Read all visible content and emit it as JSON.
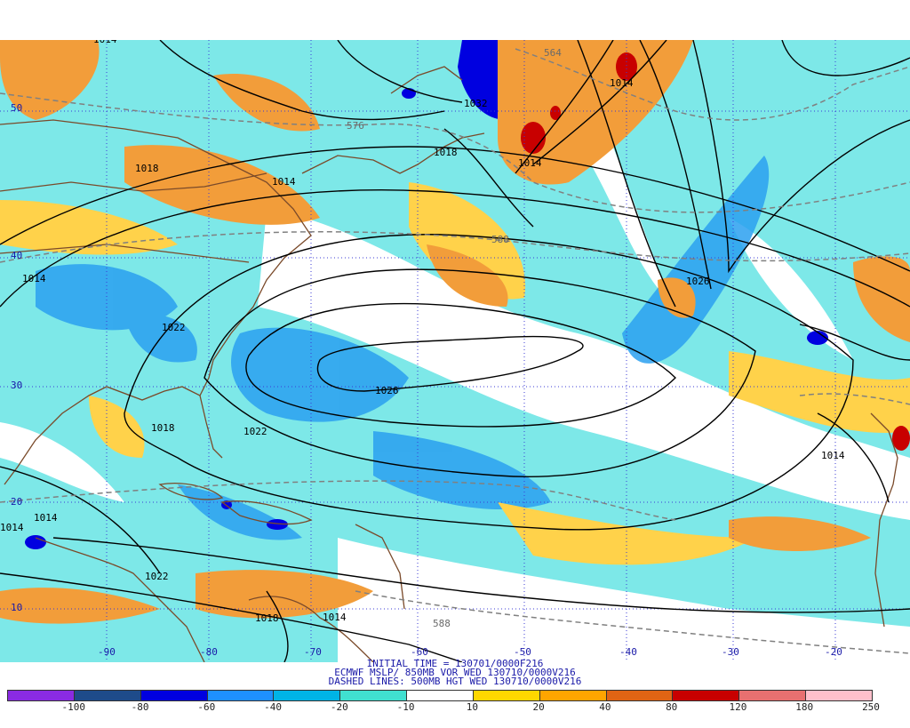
{
  "caption": {
    "line1": "INITIAL TIME = 130701/0000F216",
    "line2": "ECMWF MSLP/ 850MB VOR WED 130710/0000V216",
    "line3": "DASHED LINES: 500MB HGT WED 130710/0000V216"
  },
  "colorbar": {
    "colors": [
      "#8a2be2",
      "#1e4b8a",
      "#0000e0",
      "#1e90ff",
      "#00b4e6",
      "#40e0d0",
      "#ffffff",
      "#ffd700",
      "#ffa500",
      "#e06414",
      "#c80000",
      "#e87070",
      "#ffc0cb"
    ],
    "ticks": [
      "-100",
      "-80",
      "-60",
      "-40",
      "-20",
      "-10",
      "10",
      "20",
      "40",
      "80",
      "120",
      "180",
      "250"
    ]
  },
  "axes": {
    "lon_labels": [
      "-90",
      "-80",
      "-70",
      "-60",
      "-50",
      "-40",
      "-30",
      "-20"
    ],
    "lat_labels": [
      "50",
      "40",
      "30",
      "20",
      "10"
    ]
  },
  "isobar_labels": [
    "1014",
    "1018",
    "1014",
    "1018",
    "1014",
    "1022",
    "1026",
    "1018",
    "1022",
    "1026",
    "1014",
    "1014",
    "1014",
    "1014",
    "1022",
    "1014",
    "1018",
    "1032",
    "1014"
  ],
  "height_labels": [
    "564",
    "576",
    "588",
    "588"
  ]
}
